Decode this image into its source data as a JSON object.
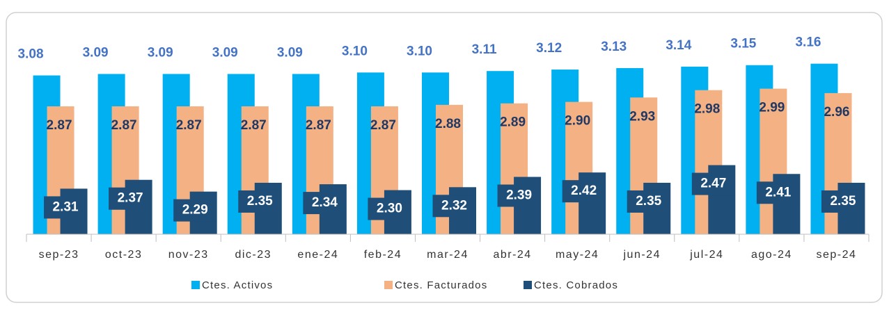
{
  "chart_data": {
    "type": "bar",
    "categories": [
      "sep-23",
      "oct-23",
      "nov-23",
      "dic-23",
      "ene-24",
      "feb-24",
      "mar-24",
      "abr-24",
      "may-24",
      "jun-24",
      "jul-24",
      "ago-24",
      "sep-24"
    ],
    "series": [
      {
        "name": "Ctes. Activos",
        "color": "#00b0f0",
        "values": [
          3.08,
          3.09,
          3.09,
          3.09,
          3.09,
          3.1,
          3.1,
          3.11,
          3.12,
          3.13,
          3.14,
          3.15,
          3.16
        ],
        "value_labels": [
          "3.08",
          "3.09",
          "3.09",
          "3.09",
          "3.09",
          "3.10",
          "3.10",
          "3.11",
          "3.12",
          "3.13",
          "3.14",
          "3.15",
          "3.16"
        ]
      },
      {
        "name": "Ctes. Facturados",
        "color": "#f4b183",
        "values": [
          2.87,
          2.87,
          2.87,
          2.87,
          2.87,
          2.87,
          2.88,
          2.89,
          2.9,
          2.93,
          2.98,
          2.99,
          2.96
        ],
        "value_labels": [
          "2.87",
          "2.87",
          "2.87",
          "2.87",
          "2.87",
          "2.87",
          "2.88",
          "2.89",
          "2.90",
          "2.93",
          "2.98",
          "2.99",
          "2.96"
        ]
      },
      {
        "name": "Ctes. Cobrados",
        "color": "#1f4e79",
        "values": [
          2.31,
          2.37,
          2.29,
          2.35,
          2.34,
          2.3,
          2.32,
          2.39,
          2.42,
          2.35,
          2.47,
          2.41,
          2.35
        ],
        "value_labels": [
          "2.31",
          "2.37",
          "2.29",
          "2.35",
          "2.34",
          "2.30",
          "2.32",
          "2.39",
          "2.42",
          "2.35",
          "2.47",
          "2.41",
          "2.35"
        ]
      }
    ],
    "ylim": [
      2.0,
      3.3
    ],
    "legend": "bottom"
  }
}
